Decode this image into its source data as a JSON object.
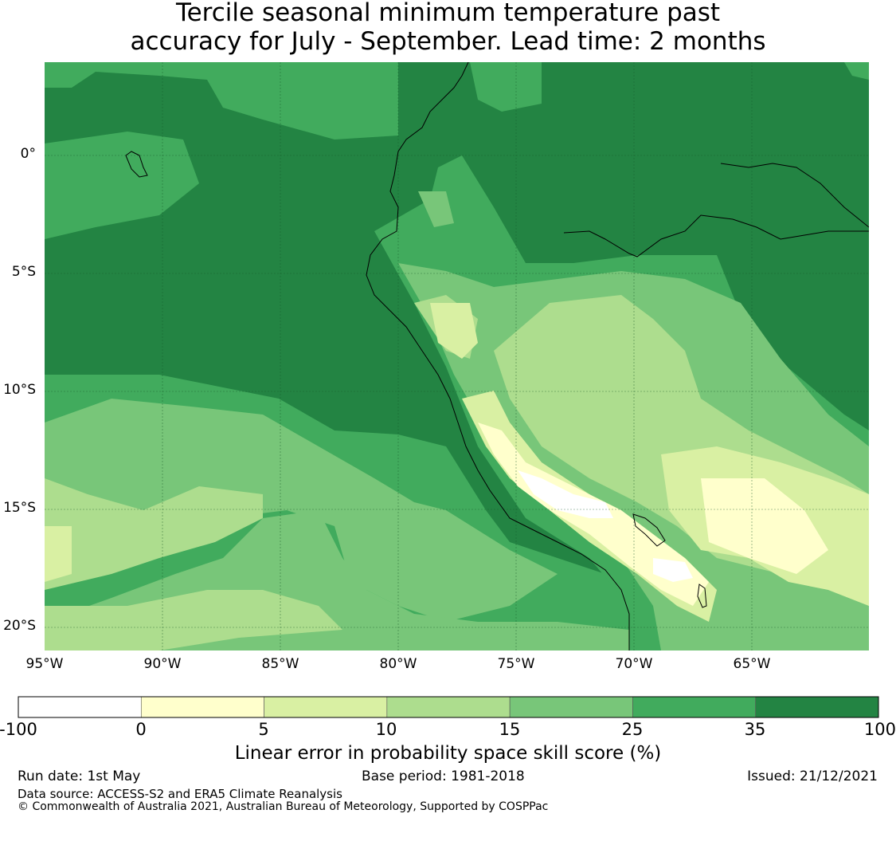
{
  "title_line1": "Tercile seasonal minimum temperature past",
  "title_line2": "accuracy for July - September. Lead time: 2 months",
  "lat_labels": [
    "0°",
    "5°S",
    "10°S",
    "15°S",
    "20°S"
  ],
  "lon_labels": [
    "95°W",
    "90°W",
    "85°W",
    "80°W",
    "75°W",
    "70°W",
    "65°W"
  ],
  "colorbar": {
    "ticks": [
      "-100",
      "0",
      "5",
      "10",
      "15",
      "25",
      "35",
      "100"
    ],
    "colors": [
      "#ffffff",
      "#ffffcc",
      "#d9f0a3",
      "#addd8e",
      "#78c679",
      "#41ab5d",
      "#238443"
    ],
    "label": "Linear error in probability space skill score (%)"
  },
  "footer": {
    "run_date": "Run date: 1st May",
    "base_period": "Base period: 1981-2018",
    "issued": "Issued: 21/12/2021",
    "data_source": "Data source: ACCESS-S2 and ERA5 Climate Reanalysis",
    "copyright": "© Commonwealth of Australia 2021, Australian Bureau of Meteorology, Supported by COSPPac"
  }
}
